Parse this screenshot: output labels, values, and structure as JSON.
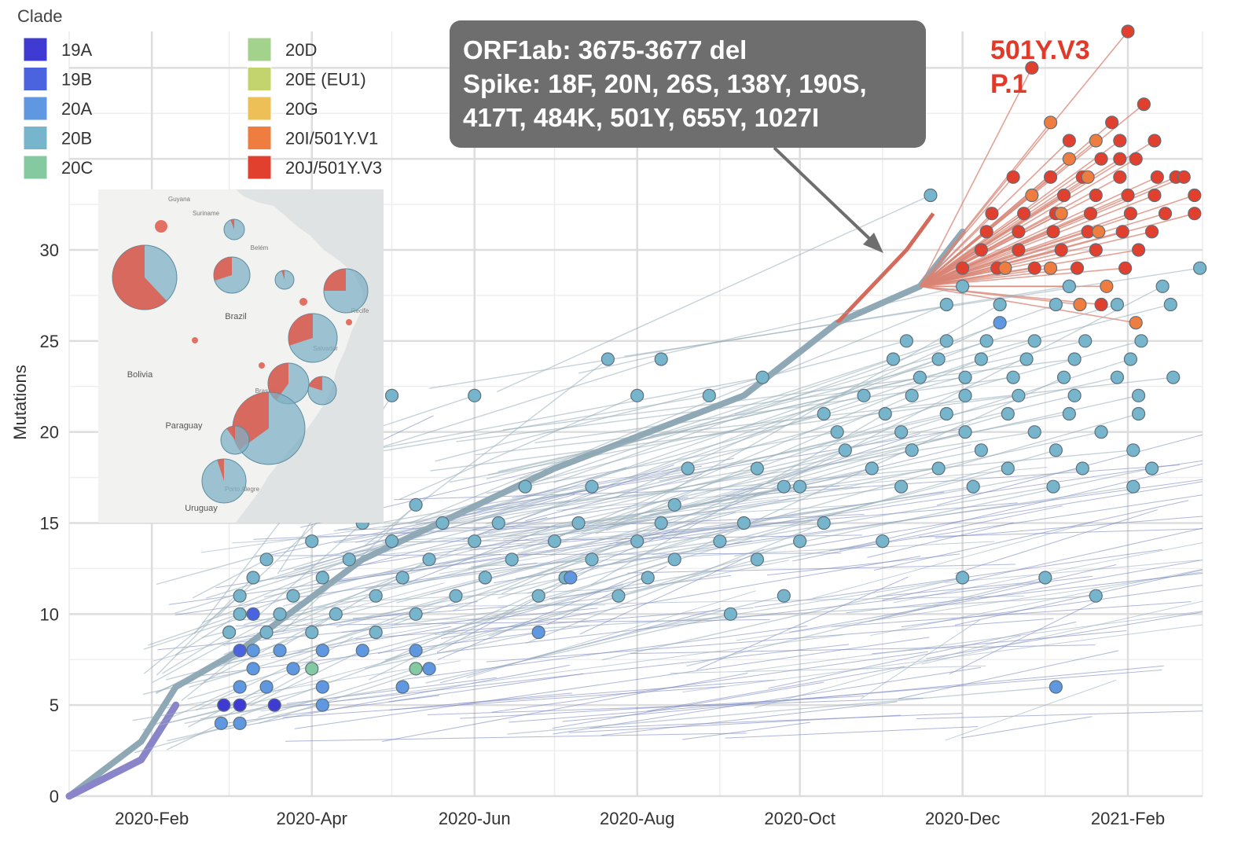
{
  "chart_data": {
    "type": "scatter",
    "title": "",
    "xlabel": "",
    "ylabel": "Mutations",
    "ylim": [
      0,
      42
    ],
    "xlim": [
      "2020-01-01",
      "2021-03-01"
    ],
    "grid": true,
    "x_ticks": [
      {
        "date": "2020-02-01",
        "label": "2020-Feb"
      },
      {
        "date": "2020-04-01",
        "label": "2020-Apr"
      },
      {
        "date": "2020-06-01",
        "label": "2020-Jun"
      },
      {
        "date": "2020-08-01",
        "label": "2020-Aug"
      },
      {
        "date": "2020-10-01",
        "label": "2020-Oct"
      },
      {
        "date": "2020-12-01",
        "label": "2020-Dec"
      },
      {
        "date": "2021-02-01",
        "label": "2021-Feb"
      }
    ],
    "y_ticks": [
      0,
      5,
      10,
      15,
      20,
      25,
      30
    ],
    "legend": {
      "title": "Clade",
      "placement": "top-left",
      "entries": [
        {
          "label": "19A",
          "color": "#3f3ad1"
        },
        {
          "label": "19B",
          "color": "#4b63de"
        },
        {
          "label": "20A",
          "color": "#5f97e0"
        },
        {
          "label": "20B",
          "color": "#76b5cc"
        },
        {
          "label": "20C",
          "color": "#84c9a0"
        },
        {
          "label": "20D",
          "color": "#a3d28d"
        },
        {
          "label": "20E (EU1)",
          "color": "#c3d36e"
        },
        {
          "label": "20G",
          "color": "#ecbf57"
        },
        {
          "label": "20I/501Y.V1",
          "color": "#ee7d3f"
        },
        {
          "label": "20J/501Y.V3",
          "color": "#e1402f"
        }
      ]
    },
    "series": [
      {
        "clade": "20J/501Y.V3",
        "color": "#e1402f",
        "points": [
          [
            "2021-02-01",
            42
          ],
          [
            "2021-01-26",
            37
          ],
          [
            "2021-02-07",
            38
          ],
          [
            "2021-01-29",
            36
          ],
          [
            "2021-02-11",
            36
          ],
          [
            "2020-12-27",
            40
          ],
          [
            "2021-01-10",
            36
          ],
          [
            "2021-01-22",
            35
          ],
          [
            "2021-01-29",
            35
          ],
          [
            "2021-02-04",
            35
          ],
          [
            "2020-12-20",
            34
          ],
          [
            "2021-01-03",
            34
          ],
          [
            "2021-01-15",
            34
          ],
          [
            "2021-01-29",
            34
          ],
          [
            "2021-02-12",
            34
          ],
          [
            "2021-02-19",
            34
          ],
          [
            "2021-02-22",
            34
          ],
          [
            "2021-01-08",
            33
          ],
          [
            "2021-01-20",
            33
          ],
          [
            "2021-02-01",
            33
          ],
          [
            "2021-02-11",
            33
          ],
          [
            "2021-02-26",
            33
          ],
          [
            "2020-12-12",
            32
          ],
          [
            "2020-12-24",
            32
          ],
          [
            "2021-01-05",
            32
          ],
          [
            "2021-01-18",
            32
          ],
          [
            "2021-02-02",
            32
          ],
          [
            "2021-02-15",
            32
          ],
          [
            "2021-02-26",
            32
          ],
          [
            "2020-12-10",
            31
          ],
          [
            "2020-12-22",
            31
          ],
          [
            "2021-01-04",
            31
          ],
          [
            "2021-01-17",
            31
          ],
          [
            "2021-01-30",
            31
          ],
          [
            "2021-02-10",
            31
          ],
          [
            "2020-12-08",
            30
          ],
          [
            "2020-12-22",
            30
          ],
          [
            "2021-01-07",
            30
          ],
          [
            "2021-01-20",
            30
          ],
          [
            "2021-02-05",
            30
          ],
          [
            "2020-12-01",
            29
          ],
          [
            "2020-12-14",
            29
          ],
          [
            "2020-12-28",
            29
          ],
          [
            "2021-01-13",
            29
          ],
          [
            "2021-01-31",
            29
          ],
          [
            "2021-01-10",
            28
          ],
          [
            "2021-01-22",
            27
          ]
        ]
      },
      {
        "clade": "20I/501Y.V1",
        "color": "#ee7d3f",
        "points": [
          [
            "2021-01-03",
            37
          ],
          [
            "2021-01-20",
            36
          ],
          [
            "2021-01-10",
            35
          ],
          [
            "2021-01-17",
            34
          ],
          [
            "2020-12-27",
            33
          ],
          [
            "2021-01-07",
            32
          ],
          [
            "2021-01-21",
            31
          ],
          [
            "2020-12-17",
            29
          ],
          [
            "2021-01-03",
            29
          ],
          [
            "2021-01-24",
            28
          ],
          [
            "2021-01-14",
            27
          ],
          [
            "2021-02-04",
            26
          ]
        ]
      },
      {
        "clade": "20B",
        "color": "#76b5cc",
        "points": [
          [
            "2020-11-19",
            33
          ],
          [
            "2021-02-28",
            29
          ],
          [
            "2020-12-01",
            28
          ],
          [
            "2021-01-10",
            28
          ],
          [
            "2021-02-14",
            28
          ],
          [
            "2020-11-25",
            27
          ],
          [
            "2020-12-15",
            27
          ],
          [
            "2021-01-05",
            27
          ],
          [
            "2021-01-28",
            27
          ],
          [
            "2021-02-17",
            27
          ],
          [
            "2020-11-10",
            25
          ],
          [
            "2020-11-25",
            25
          ],
          [
            "2020-12-10",
            25
          ],
          [
            "2020-12-28",
            25
          ],
          [
            "2021-01-16",
            25
          ],
          [
            "2021-02-06",
            25
          ],
          [
            "2020-11-05",
            24
          ],
          [
            "2020-11-22",
            24
          ],
          [
            "2020-12-08",
            24
          ],
          [
            "2020-12-25",
            24
          ],
          [
            "2021-01-12",
            24
          ],
          [
            "2021-02-02",
            24
          ],
          [
            "2020-11-15",
            23
          ],
          [
            "2020-12-02",
            23
          ],
          [
            "2020-12-20",
            23
          ],
          [
            "2021-01-08",
            23
          ],
          [
            "2021-01-28",
            23
          ],
          [
            "2021-02-18",
            23
          ],
          [
            "2020-10-25",
            22
          ],
          [
            "2020-11-12",
            22
          ],
          [
            "2020-12-02",
            22
          ],
          [
            "2020-12-22",
            22
          ],
          [
            "2021-01-12",
            22
          ],
          [
            "2021-02-05",
            22
          ],
          [
            "2020-10-10",
            21
          ],
          [
            "2020-11-02",
            21
          ],
          [
            "2020-11-25",
            21
          ],
          [
            "2020-12-18",
            21
          ],
          [
            "2021-01-10",
            21
          ],
          [
            "2021-02-05",
            21
          ],
          [
            "2020-10-15",
            20
          ],
          [
            "2020-11-08",
            20
          ],
          [
            "2020-12-02",
            20
          ],
          [
            "2020-12-28",
            20
          ],
          [
            "2021-01-22",
            20
          ],
          [
            "2020-10-18",
            19
          ],
          [
            "2020-11-12",
            19
          ],
          [
            "2020-12-08",
            19
          ],
          [
            "2021-01-05",
            19
          ],
          [
            "2021-02-03",
            19
          ],
          [
            "2020-10-28",
            18
          ],
          [
            "2020-11-22",
            18
          ],
          [
            "2020-12-18",
            18
          ],
          [
            "2021-01-15",
            18
          ],
          [
            "2021-02-10",
            18
          ],
          [
            "2020-09-15",
            18
          ],
          [
            "2020-09-25",
            17
          ],
          [
            "2020-08-20",
            18
          ],
          [
            "2020-10-01",
            17
          ],
          [
            "2020-11-08",
            17
          ],
          [
            "2020-12-05",
            17
          ],
          [
            "2021-01-04",
            17
          ],
          [
            "2021-02-03",
            17
          ],
          [
            "2020-05-01",
            22
          ],
          [
            "2020-06-01",
            22
          ],
          [
            "2020-07-21",
            24
          ],
          [
            "2020-08-10",
            24
          ],
          [
            "2020-08-01",
            22
          ],
          [
            "2020-08-28",
            22
          ],
          [
            "2020-09-17",
            23
          ],
          [
            "2020-06-20",
            17
          ],
          [
            "2020-07-15",
            17
          ],
          [
            "2020-08-15",
            16
          ],
          [
            "2020-03-25",
            16
          ],
          [
            "2020-05-10",
            16
          ],
          [
            "2020-04-10",
            16
          ],
          [
            "2020-04-20",
            15
          ],
          [
            "2020-05-20",
            15
          ],
          [
            "2020-06-10",
            15
          ],
          [
            "2020-07-10",
            15
          ],
          [
            "2020-08-10",
            15
          ],
          [
            "2020-09-10",
            15
          ],
          [
            "2020-10-10",
            15
          ],
          [
            "2020-04-01",
            14
          ],
          [
            "2020-05-01",
            14
          ],
          [
            "2020-06-01",
            14
          ],
          [
            "2020-07-01",
            14
          ],
          [
            "2020-08-01",
            14
          ],
          [
            "2020-09-01",
            14
          ],
          [
            "2020-10-01",
            14
          ],
          [
            "2020-11-01",
            14
          ],
          [
            "2020-03-15",
            13
          ],
          [
            "2020-04-15",
            13
          ],
          [
            "2020-05-15",
            13
          ],
          [
            "2020-06-15",
            13
          ],
          [
            "2020-07-15",
            13
          ],
          [
            "2020-08-15",
            13
          ],
          [
            "2020-09-15",
            13
          ],
          [
            "2020-03-10",
            12
          ],
          [
            "2020-04-05",
            12
          ],
          [
            "2020-05-05",
            12
          ],
          [
            "2020-06-05",
            12
          ],
          [
            "2020-07-05",
            12
          ],
          [
            "2020-08-05",
            12
          ],
          [
            "2020-12-01",
            12
          ],
          [
            "2021-01-01",
            12
          ],
          [
            "2020-03-05",
            11
          ],
          [
            "2020-03-25",
            11
          ],
          [
            "2020-04-25",
            11
          ],
          [
            "2020-05-25",
            11
          ],
          [
            "2020-06-25",
            11
          ],
          [
            "2020-07-25",
            11
          ],
          [
            "2020-09-25",
            11
          ],
          [
            "2021-01-20",
            11
          ],
          [
            "2020-03-05",
            10
          ],
          [
            "2020-03-20",
            10
          ],
          [
            "2020-04-10",
            10
          ],
          [
            "2020-05-10",
            10
          ],
          [
            "2020-09-05",
            10
          ],
          [
            "2020-03-01",
            9
          ],
          [
            "2020-03-15",
            9
          ],
          [
            "2020-04-01",
            9
          ],
          [
            "2020-04-25",
            9
          ]
        ]
      },
      {
        "clade": "20A",
        "color": "#5f97e0",
        "points": [
          [
            "2020-12-15",
            26
          ],
          [
            "2020-07-07",
            12
          ],
          [
            "2020-06-25",
            9
          ],
          [
            "2020-03-10",
            8
          ],
          [
            "2020-03-20",
            8
          ],
          [
            "2020-04-05",
            8
          ],
          [
            "2020-04-20",
            8
          ],
          [
            "2020-05-10",
            8
          ],
          [
            "2020-03-10",
            7
          ],
          [
            "2020-03-25",
            7
          ],
          [
            "2020-05-15",
            7
          ],
          [
            "2020-03-05",
            6
          ],
          [
            "2020-03-15",
            6
          ],
          [
            "2020-04-05",
            6
          ],
          [
            "2020-05-05",
            6
          ],
          [
            "2020-02-27",
            4
          ],
          [
            "2020-03-05",
            4
          ],
          [
            "2020-04-05",
            5
          ],
          [
            "2021-01-05",
            6
          ]
        ]
      },
      {
        "clade": "19B",
        "color": "#4b63de",
        "points": [
          [
            "2020-03-10",
            10
          ],
          [
            "2020-03-05",
            8
          ]
        ]
      },
      {
        "clade": "19A",
        "color": "#3f3ad1",
        "points": [
          [
            "2020-02-28",
            5
          ],
          [
            "2020-03-05",
            5
          ],
          [
            "2020-03-18",
            5
          ]
        ]
      },
      {
        "clade": "20C",
        "color": "#84c9a0",
        "points": [
          [
            "2020-04-01",
            7
          ],
          [
            "2020-05-10",
            7
          ]
        ]
      }
    ],
    "annotations": [
      {
        "text": "ORF1ab: 3675-3677 del",
        "style": "callout"
      },
      {
        "text": "Spike: 18F, 20N, 26S, 138Y, 190S,",
        "style": "callout"
      },
      {
        "text": "417T, 484K, 501Y, 655Y, 1027I",
        "style": "callout"
      },
      {
        "text": "501Y.V3",
        "style": "variant"
      },
      {
        "text": "P.1",
        "style": "variant"
      }
    ],
    "inset_map": {
      "region_labels": [
        "Guyana",
        "Suriname",
        "Belém",
        "Brazil",
        "Bolivia",
        "Paraguay",
        "Salvador",
        "Brasília",
        "Porto Alegre",
        "Uruguay",
        "Recife"
      ],
      "pies": [
        {
          "label": "",
          "share_501Y_V3": 0.62
        },
        {
          "label": "",
          "share_501Y_V3": 0.06
        },
        {
          "label": "",
          "share_501Y_V3": 0.3
        },
        {
          "label": "",
          "share_501Y_V3": 0.05
        },
        {
          "label": "",
          "share_501Y_V3": 0.25
        },
        {
          "label": "",
          "share_501Y_V3": 0.3
        },
        {
          "label": "",
          "share_501Y_V3": 0.4
        },
        {
          "label": "",
          "share_501Y_V3": 0.2
        },
        {
          "label": "",
          "share_501Y_V3": 0.35
        },
        {
          "label": "",
          "share_501Y_V3": 0.1
        },
        {
          "label": "",
          "share_501Y_V3": 0.05
        }
      ]
    }
  }
}
